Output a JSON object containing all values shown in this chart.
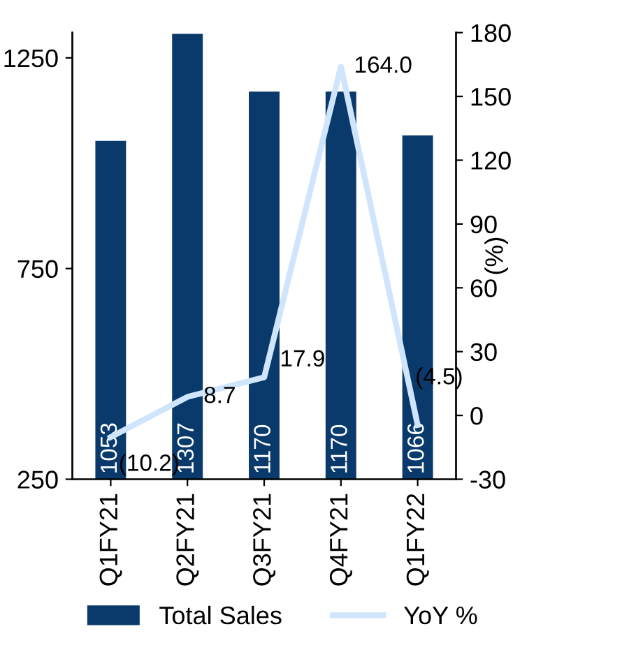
{
  "chart_data": {
    "type": "bar",
    "categories": [
      "Q1FY21",
      "Q2FY21",
      "Q3FY21",
      "Q4FY21",
      "Q1FY22"
    ],
    "series": [
      {
        "name": "Total Sales",
        "color": "#0a3a6b",
        "values": [
          1053,
          1307,
          1170,
          1170,
          1066
        ],
        "data_labels": true
      },
      {
        "name": "YoY %",
        "type": "line",
        "axis": "y2",
        "color": "#cfe5fb",
        "values": [
          -10.2,
          8.7,
          17.9,
          164.0,
          -4.5
        ],
        "value_labels": [
          "(10.2)",
          "8.7",
          "17.9",
          "164.0",
          "(4.5)"
        ]
      }
    ],
    "ylim": [
      250,
      1310
    ],
    "yticks": [
      250,
      750,
      1250
    ],
    "y2lim": [
      -30,
      180
    ],
    "y2ticks": [
      -30,
      0,
      30,
      60,
      90,
      120,
      150,
      180
    ],
    "y2label": "(%)",
    "legend": "bottom",
    "grid": false
  }
}
